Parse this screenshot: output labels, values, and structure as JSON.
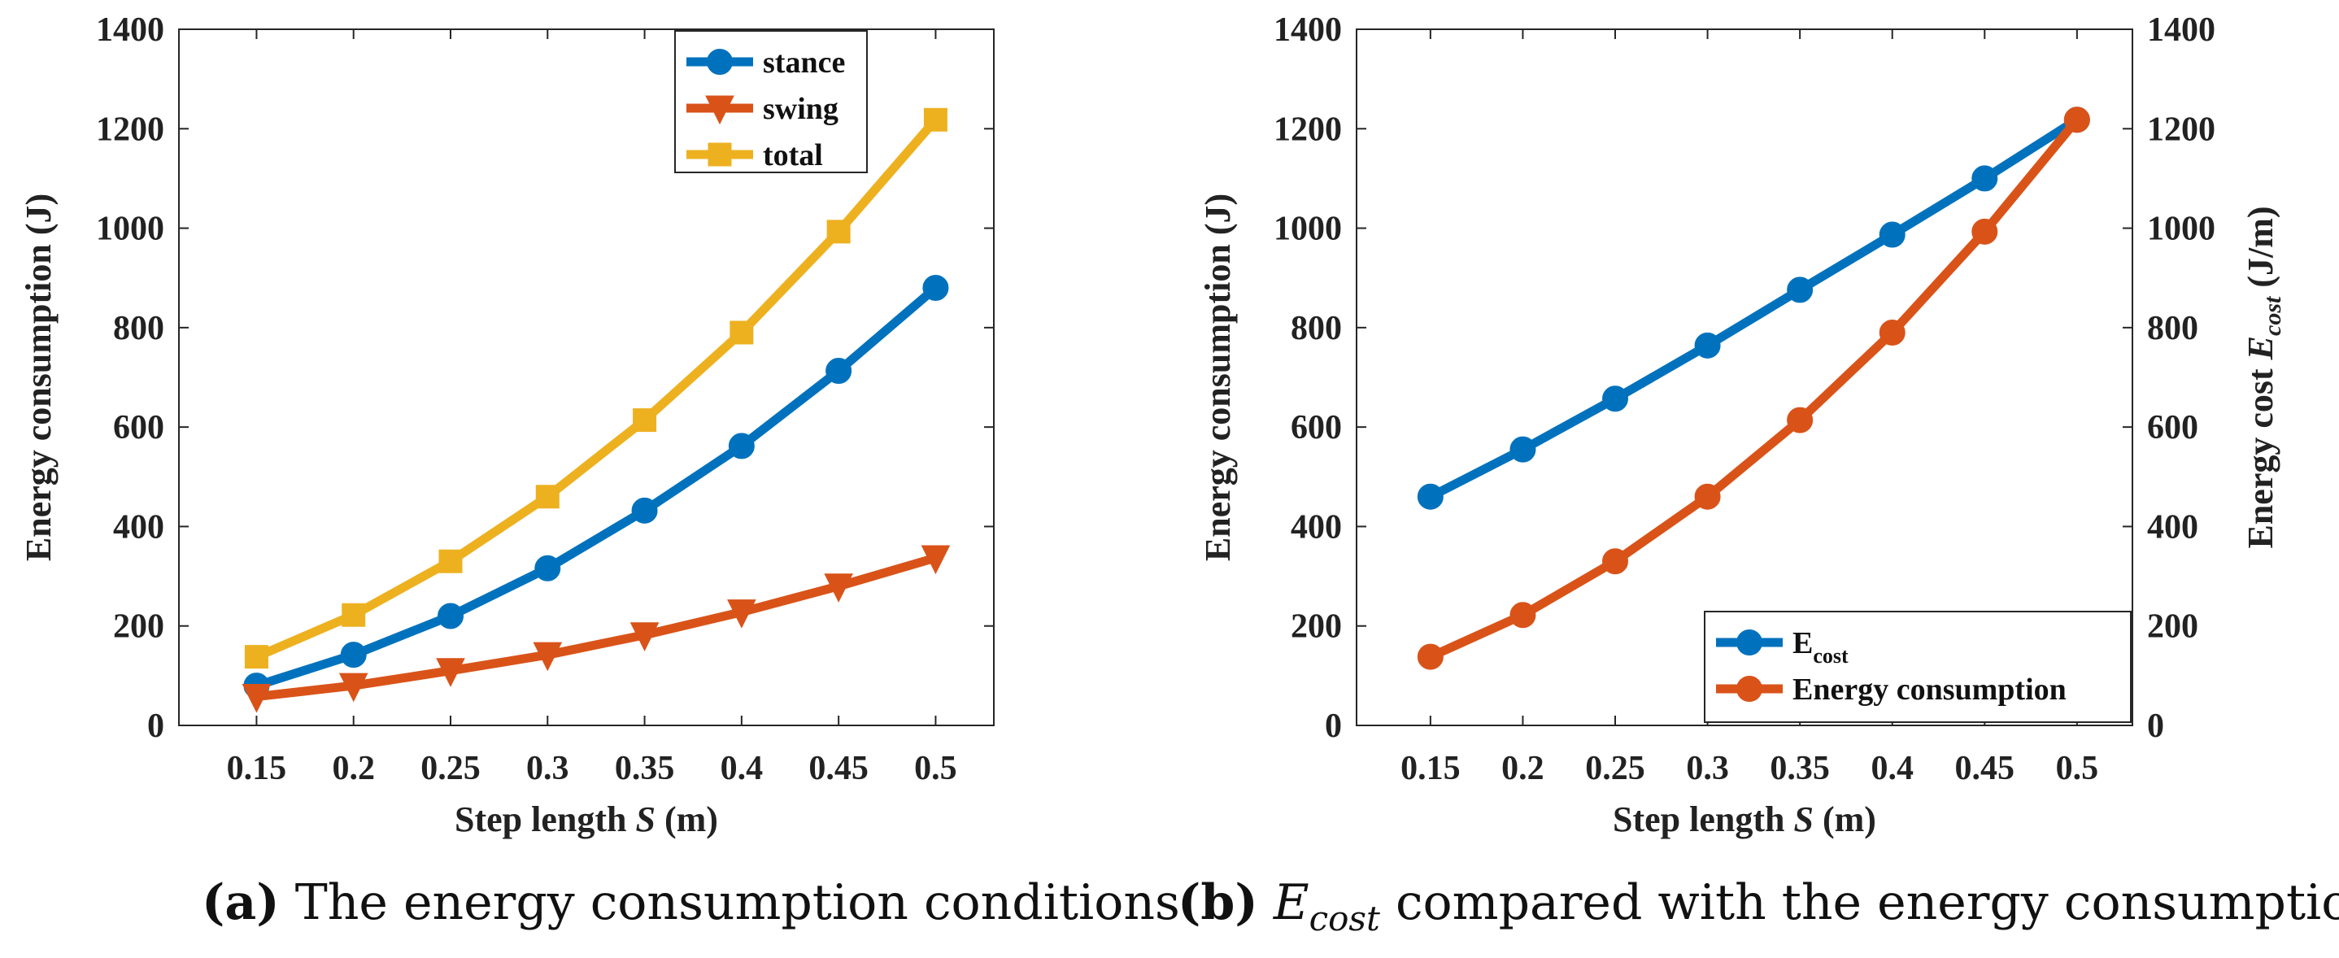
{
  "chart_data": [
    {
      "type": "line",
      "panel": "a",
      "caption_label": "(a)",
      "caption_text": "The energy consumption conditions",
      "xlabel_prefix": "Step length ",
      "xlabel_var": "S",
      "xlabel_suffix": " (m)",
      "ylabel": "Energy consumption (J)",
      "categories": [
        "0.15",
        "0.2",
        "0.25",
        "0.3",
        "0.35",
        "0.4",
        "0.45",
        "0.5"
      ],
      "x": [
        0.15,
        0.2,
        0.25,
        0.3,
        0.35,
        0.4,
        0.45,
        0.5
      ],
      "xlim": [
        0.11,
        0.53
      ],
      "ylim": [
        0,
        1400
      ],
      "yticks": [
        0,
        200,
        400,
        600,
        800,
        1000,
        1200,
        1400
      ],
      "legend_position": "top-right",
      "series": [
        {
          "name": "stance",
          "color": "#0072BD",
          "marker": "circle",
          "values": [
            80,
            142,
            220,
            316,
            432,
            562,
            713,
            880
          ]
        },
        {
          "name": "swing",
          "color": "#D95319",
          "marker": "triangle-down",
          "values": [
            58,
            80,
            110,
            142,
            182,
            228,
            280,
            337
          ]
        },
        {
          "name": "total",
          "color": "#EDB120",
          "marker": "square",
          "values": [
            138,
            222,
            330,
            460,
            614,
            790,
            993,
            1218
          ]
        }
      ]
    },
    {
      "type": "line",
      "panel": "b",
      "caption_label": "(b)",
      "caption_var": "E",
      "caption_sub": "cost",
      "caption_text": " compared with the energy consumption",
      "xlabel_prefix": "Step length ",
      "xlabel_var": "S",
      "xlabel_suffix": " (m)",
      "ylabel": "Energy consumption (J)",
      "y2label_prefix": "Energy cost ",
      "y2label_var": "E",
      "y2label_sub": "cost",
      "y2label_suffix": " (J/m)",
      "categories": [
        "0.15",
        "0.2",
        "0.25",
        "0.3",
        "0.35",
        "0.4",
        "0.45",
        "0.5"
      ],
      "x": [
        0.15,
        0.2,
        0.25,
        0.3,
        0.35,
        0.4,
        0.45,
        0.5
      ],
      "xlim": [
        0.11,
        0.53
      ],
      "ylim": [
        0,
        1400
      ],
      "y2lim": [
        0,
        1400
      ],
      "yticks": [
        0,
        200,
        400,
        600,
        800,
        1000,
        1200,
        1400
      ],
      "legend_position": "bottom-right",
      "series": [
        {
          "name": "E",
          "name_sub": "cost",
          "axis": "right",
          "color": "#0072BD",
          "marker": "circle",
          "values": [
            460,
            555,
            657,
            764,
            876,
            987,
            1100,
            1218
          ]
        },
        {
          "name": "Energy consumption",
          "axis": "left",
          "color": "#D95319",
          "marker": "circle",
          "values": [
            138,
            222,
            330,
            460,
            614,
            790,
            993,
            1218
          ]
        }
      ]
    }
  ]
}
